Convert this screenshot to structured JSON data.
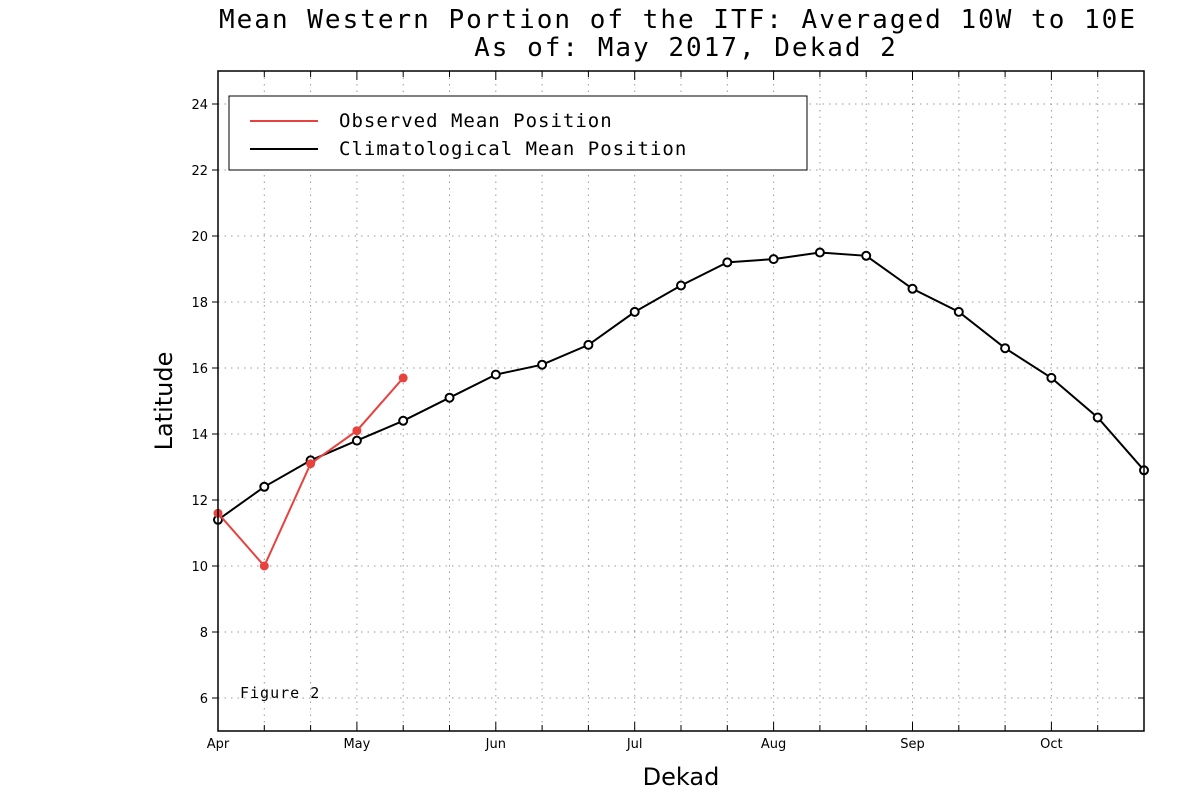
{
  "chart_data": {
    "type": "line",
    "title": "Mean Western Portion of the ITF: Averaged 10W to 10E",
    "subtitle": "As of: May 2017, Dekad 2",
    "xlabel": "Dekad",
    "ylabel": "Latitude",
    "x_tick_labels": [
      "Apr",
      "May",
      "Jun",
      "Jul",
      "Aug",
      "Sep",
      "Oct"
    ],
    "x_range_dekads": [
      0,
      20
    ],
    "ylim": [
      5,
      25
    ],
    "y_ticks": [
      6,
      8,
      10,
      12,
      14,
      16,
      18,
      20,
      22,
      24
    ],
    "grid": true,
    "legend_position": "top-left",
    "annotation": "Figure 2",
    "series": [
      {
        "name": "Observed Mean Position",
        "color": "#e8423f",
        "marker": "filled-circle",
        "values": [
          11.6,
          10.0,
          13.1,
          14.1,
          15.7
        ]
      },
      {
        "name": "Climatological Mean Position",
        "color": "#000000",
        "marker": "open-circle",
        "values": [
          11.4,
          12.4,
          13.2,
          13.8,
          14.4,
          15.1,
          15.8,
          16.1,
          16.7,
          17.7,
          18.5,
          19.2,
          19.3,
          19.5,
          19.4,
          18.4,
          17.7,
          16.6,
          15.7,
          14.5,
          12.9
        ]
      }
    ]
  }
}
